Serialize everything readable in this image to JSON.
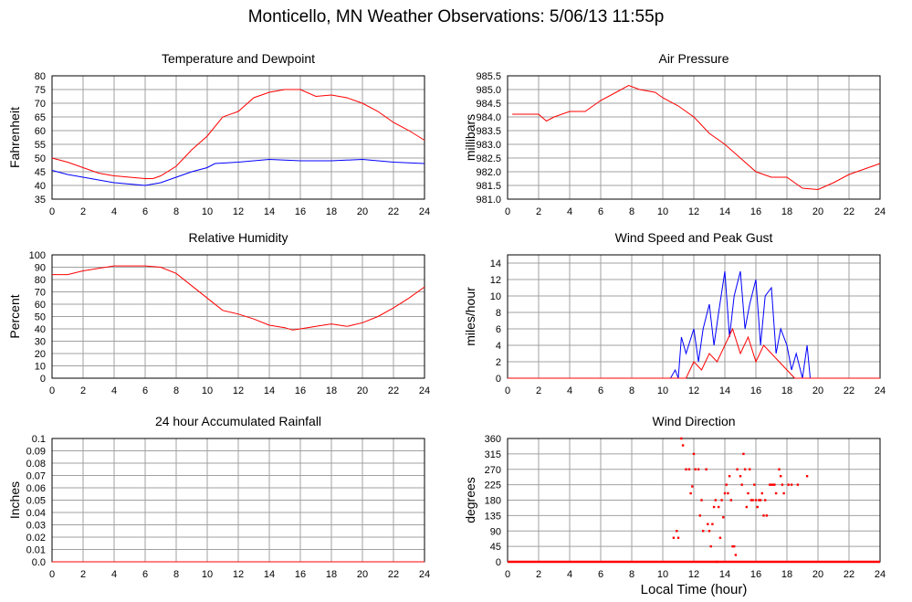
{
  "page": {
    "title": "Monticello, MN Weather Observations: 5/06/13 11:55p"
  },
  "colors": {
    "primary": "#ff0000",
    "secondary": "#0000ff",
    "grid": "#a0a0a0",
    "axis": "#000000"
  },
  "chart_data": [
    {
      "id": "temp",
      "type": "line",
      "title": "Temperature and Dewpoint",
      "ylabel": "Fahrenheit",
      "xlabel": "",
      "xlim": [
        0,
        24
      ],
      "ylim": [
        35,
        80
      ],
      "x_ticks": [
        "0",
        "2",
        "4",
        "6",
        "8",
        "10",
        "12",
        "14",
        "16",
        "18",
        "20",
        "22",
        "24"
      ],
      "y_ticks": [
        "35",
        "40",
        "45",
        "50",
        "55",
        "60",
        "65",
        "70",
        "75",
        "80"
      ],
      "grid": true,
      "series": [
        {
          "color": "#ff0000",
          "points": [
            [
              0,
              50
            ],
            [
              1,
              48.5
            ],
            [
              2,
              46.5
            ],
            [
              3,
              44.5
            ],
            [
              4,
              43.5
            ],
            [
              5,
              43
            ],
            [
              6,
              42.5
            ],
            [
              6.5,
              42.5
            ],
            [
              7,
              43.5
            ],
            [
              8,
              47
            ],
            [
              9,
              53
            ],
            [
              10,
              58
            ],
            [
              11,
              65
            ],
            [
              12,
              67
            ],
            [
              13,
              72
            ],
            [
              14,
              74
            ],
            [
              15,
              75
            ],
            [
              16,
              75
            ],
            [
              17,
              72.5
            ],
            [
              18,
              73
            ],
            [
              19,
              72
            ],
            [
              20,
              70
            ],
            [
              21,
              67
            ],
            [
              22,
              63
            ],
            [
              23,
              60
            ],
            [
              24,
              56.5
            ]
          ]
        },
        {
          "color": "#0000ff",
          "points": [
            [
              0,
              45.5
            ],
            [
              1,
              44
            ],
            [
              2,
              43
            ],
            [
              3,
              42
            ],
            [
              4,
              41
            ],
            [
              5,
              40.5
            ],
            [
              6,
              40
            ],
            [
              7,
              41
            ],
            [
              8,
              43
            ],
            [
              9,
              45
            ],
            [
              10,
              46.5
            ],
            [
              10.5,
              48
            ],
            [
              12,
              48.5
            ],
            [
              13,
              49
            ],
            [
              14,
              49.5
            ],
            [
              16,
              49
            ],
            [
              18,
              49
            ],
            [
              20,
              49.5
            ],
            [
              22,
              48.5
            ],
            [
              24,
              48
            ]
          ]
        }
      ]
    },
    {
      "id": "pressure",
      "type": "line",
      "title": "Air Pressure",
      "ylabel": "millibars",
      "xlabel": "",
      "xlim": [
        0,
        24
      ],
      "ylim": [
        981.0,
        985.5
      ],
      "x_ticks": [
        "0",
        "2",
        "4",
        "6",
        "8",
        "10",
        "12",
        "14",
        "16",
        "18",
        "20",
        "22",
        "24"
      ],
      "y_ticks": [
        "981.0",
        "981.5",
        "982.0",
        "982.5",
        "983.0",
        "983.5",
        "984.0",
        "984.5",
        "985.0",
        "985.5"
      ],
      "grid": true,
      "series": [
        {
          "color": "#ff0000",
          "points": [
            [
              0.3,
              984.1
            ],
            [
              1,
              984.1
            ],
            [
              2,
              984.1
            ],
            [
              2.5,
              983.85
            ],
            [
              3,
              984.0
            ],
            [
              4,
              984.2
            ],
            [
              5,
              984.2
            ],
            [
              6,
              984.6
            ],
            [
              7,
              984.9
            ],
            [
              7.8,
              985.15
            ],
            [
              8.5,
              985.0
            ],
            [
              9.5,
              984.9
            ],
            [
              10,
              984.7
            ],
            [
              11,
              984.4
            ],
            [
              12,
              984.0
            ],
            [
              13,
              983.4
            ],
            [
              14,
              983.0
            ],
            [
              15,
              982.5
            ],
            [
              16,
              982.0
            ],
            [
              17,
              981.8
            ],
            [
              18,
              981.8
            ],
            [
              19,
              981.4
            ],
            [
              20,
              981.35
            ],
            [
              21,
              981.6
            ],
            [
              22,
              981.9
            ],
            [
              23,
              982.1
            ],
            [
              24,
              982.3
            ]
          ]
        }
      ]
    },
    {
      "id": "humidity",
      "type": "line",
      "title": "Relative Humidity",
      "ylabel": "Percent",
      "xlabel": "",
      "xlim": [
        0,
        24
      ],
      "ylim": [
        0,
        100
      ],
      "x_ticks": [
        "0",
        "2",
        "4",
        "6",
        "8",
        "10",
        "12",
        "14",
        "16",
        "18",
        "20",
        "22",
        "24"
      ],
      "y_ticks": [
        "0",
        "10",
        "20",
        "30",
        "40",
        "50",
        "60",
        "70",
        "80",
        "90",
        "100"
      ],
      "grid": true,
      "series": [
        {
          "color": "#ff0000",
          "points": [
            [
              0,
              84
            ],
            [
              1,
              84
            ],
            [
              2,
              87
            ],
            [
              3,
              89
            ],
            [
              4,
              91
            ],
            [
              5,
              91
            ],
            [
              6,
              91
            ],
            [
              7,
              90
            ],
            [
              8,
              85
            ],
            [
              9,
              75
            ],
            [
              10,
              65
            ],
            [
              11,
              55
            ],
            [
              12,
              52
            ],
            [
              13,
              48
            ],
            [
              14,
              43
            ],
            [
              15,
              41
            ],
            [
              15.5,
              39
            ],
            [
              16,
              40
            ],
            [
              17,
              42
            ],
            [
              18,
              44
            ],
            [
              19,
              42
            ],
            [
              20,
              45
            ],
            [
              21,
              50
            ],
            [
              22,
              57
            ],
            [
              23,
              65
            ],
            [
              24,
              74
            ]
          ]
        }
      ]
    },
    {
      "id": "wind",
      "type": "line",
      "title": "Wind Speed and Peak Gust",
      "ylabel": "miles/hour",
      "xlabel": "",
      "xlim": [
        0,
        24
      ],
      "ylim": [
        0,
        15
      ],
      "x_ticks": [
        "0",
        "2",
        "4",
        "6",
        "8",
        "10",
        "12",
        "14",
        "16",
        "18",
        "20",
        "22",
        "24"
      ],
      "y_ticks": [
        "0",
        "2",
        "4",
        "6",
        "8",
        "10",
        "12",
        "14"
      ],
      "grid": true,
      "series": [
        {
          "color": "#0000ff",
          "points": [
            [
              0,
              0
            ],
            [
              10.5,
              0
            ],
            [
              10.8,
              1
            ],
            [
              11,
              0
            ],
            [
              11.2,
              5
            ],
            [
              11.5,
              3
            ],
            [
              12,
              6
            ],
            [
              12.3,
              2
            ],
            [
              12.6,
              6
            ],
            [
              13,
              9
            ],
            [
              13.3,
              4
            ],
            [
              13.6,
              8
            ],
            [
              14,
              13
            ],
            [
              14.3,
              5
            ],
            [
              14.6,
              10
            ],
            [
              15,
              13
            ],
            [
              15.3,
              6
            ],
            [
              15.6,
              9
            ],
            [
              16,
              12
            ],
            [
              16.3,
              4
            ],
            [
              16.6,
              10
            ],
            [
              17,
              11
            ],
            [
              17.3,
              3
            ],
            [
              17.6,
              6
            ],
            [
              18,
              4
            ],
            [
              18.3,
              1
            ],
            [
              18.6,
              3
            ],
            [
              19,
              0
            ],
            [
              19.3,
              4
            ],
            [
              19.5,
              0
            ],
            [
              24,
              0
            ]
          ]
        },
        {
          "color": "#ff0000",
          "points": [
            [
              0,
              0
            ],
            [
              11.5,
              0
            ],
            [
              12,
              2
            ],
            [
              12.5,
              1
            ],
            [
              13,
              3
            ],
            [
              13.5,
              2
            ],
            [
              14,
              4
            ],
            [
              14.5,
              6
            ],
            [
              15,
              3
            ],
            [
              15.5,
              5
            ],
            [
              16,
              2
            ],
            [
              16.5,
              4
            ],
            [
              17,
              3
            ],
            [
              17.5,
              2
            ],
            [
              18,
              1
            ],
            [
              18.5,
              0
            ],
            [
              24,
              0
            ]
          ]
        }
      ]
    },
    {
      "id": "rainfall",
      "type": "line",
      "title": "24 hour Accumulated Rainfall",
      "ylabel": "Inches",
      "xlabel": "",
      "xlim": [
        0,
        24
      ],
      "ylim": [
        0,
        0.1
      ],
      "x_ticks": [
        "0",
        "2",
        "4",
        "6",
        "8",
        "10",
        "12",
        "14",
        "16",
        "18",
        "20",
        "22",
        "24"
      ],
      "y_ticks": [
        "0.0",
        "0.01",
        "0.02",
        "0.03",
        "0.04",
        "0.05",
        "0.06",
        "0.07",
        "0.08",
        "0.09",
        "0.1"
      ],
      "grid": true,
      "series": [
        {
          "color": "#ff0000",
          "points": [
            [
              0,
              0
            ],
            [
              24,
              0
            ]
          ]
        }
      ]
    },
    {
      "id": "direction",
      "type": "scatter",
      "title": "Wind Direction",
      "ylabel": "degrees",
      "xlabel": "Local Time (hour)",
      "xlim": [
        0,
        24
      ],
      "ylim": [
        0,
        360
      ],
      "x_ticks": [
        "0",
        "2",
        "4",
        "6",
        "8",
        "10",
        "12",
        "14",
        "16",
        "18",
        "20",
        "22",
        "24"
      ],
      "y_ticks": [
        "0",
        "45",
        "90",
        "135",
        "180",
        "225",
        "270",
        "315",
        "360"
      ],
      "grid": true,
      "series": [
        {
          "color": "#ff0000",
          "baseline": {
            "from": 0,
            "to": 24,
            "y": 0
          },
          "points": [
            [
              10.7,
              70
            ],
            [
              10.9,
              90
            ],
            [
              11,
              70
            ],
            [
              11.2,
              360
            ],
            [
              11.3,
              340
            ],
            [
              11.5,
              270
            ],
            [
              11.7,
              270
            ],
            [
              11.8,
              200
            ],
            [
              11.9,
              220
            ],
            [
              12,
              315
            ],
            [
              12.1,
              270
            ],
            [
              12.3,
              270
            ],
            [
              12.4,
              135
            ],
            [
              12.5,
              180
            ],
            [
              12.6,
              90
            ],
            [
              12.8,
              270
            ],
            [
              12.9,
              110
            ],
            [
              13,
              90
            ],
            [
              13.1,
              45
            ],
            [
              13.2,
              110
            ],
            [
              13.3,
              160
            ],
            [
              13.4,
              180
            ],
            [
              13.5,
              0
            ],
            [
              13.6,
              160
            ],
            [
              13.7,
              70
            ],
            [
              13.8,
              180
            ],
            [
              13.9,
              130
            ],
            [
              14,
              200
            ],
            [
              14.1,
              225
            ],
            [
              14.2,
              200
            ],
            [
              14.3,
              250
            ],
            [
              14.4,
              180
            ],
            [
              14.5,
              45
            ],
            [
              14.6,
              45
            ],
            [
              14.7,
              20
            ],
            [
              14.8,
              270
            ],
            [
              15,
              250
            ],
            [
              15.1,
              225
            ],
            [
              15.2,
              315
            ],
            [
              15.3,
              270
            ],
            [
              15.4,
              160
            ],
            [
              15.5,
              200
            ],
            [
              15.6,
              270
            ],
            [
              15.7,
              180
            ],
            [
              15.8,
              180
            ],
            [
              15.9,
              225
            ],
            [
              16,
              180
            ],
            [
              16.1,
              160
            ],
            [
              16.2,
              180
            ],
            [
              16.3,
              180
            ],
            [
              16.4,
              200
            ],
            [
              16.5,
              135
            ],
            [
              16.6,
              180
            ],
            [
              16.7,
              135
            ],
            [
              16.9,
              225
            ],
            [
              17,
              225
            ],
            [
              17.1,
              225
            ],
            [
              17.2,
              225
            ],
            [
              17.3,
              200
            ],
            [
              17.5,
              270
            ],
            [
              17.6,
              250
            ],
            [
              17.7,
              225
            ],
            [
              17.8,
              200
            ],
            [
              18.1,
              225
            ],
            [
              18.3,
              225
            ],
            [
              18.7,
              225
            ],
            [
              19.3,
              250
            ]
          ]
        }
      ]
    }
  ]
}
